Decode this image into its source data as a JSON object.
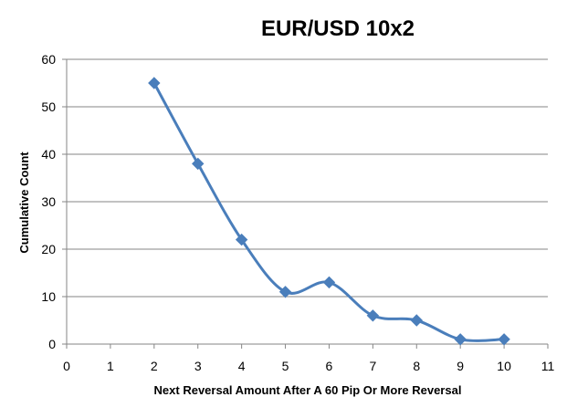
{
  "chart_data": {
    "type": "line",
    "title": "EUR/USD 10x2",
    "xlabel": "Next Reversal Amount After A 60 Pip Or More Reversal",
    "ylabel": "Cumulative Count",
    "xlim": [
      0,
      11
    ],
    "ylim": [
      0,
      60
    ],
    "x_ticks": [
      "0",
      "1",
      "2",
      "3",
      "4",
      "5",
      "6",
      "7",
      "8",
      "9",
      "10",
      "11"
    ],
    "y_ticks": [
      "0",
      "10",
      "20",
      "30",
      "40",
      "50",
      "60"
    ],
    "grid": "horizontal",
    "legend": "none",
    "smooth": true,
    "marker": "diamond",
    "series": [
      {
        "x": [
          2,
          3,
          4,
          5,
          6,
          7,
          8,
          9,
          10
        ],
        "y": [
          55,
          38,
          22,
          11,
          13,
          6,
          5,
          1,
          1
        ],
        "color": "#4a7ebb"
      }
    ]
  }
}
